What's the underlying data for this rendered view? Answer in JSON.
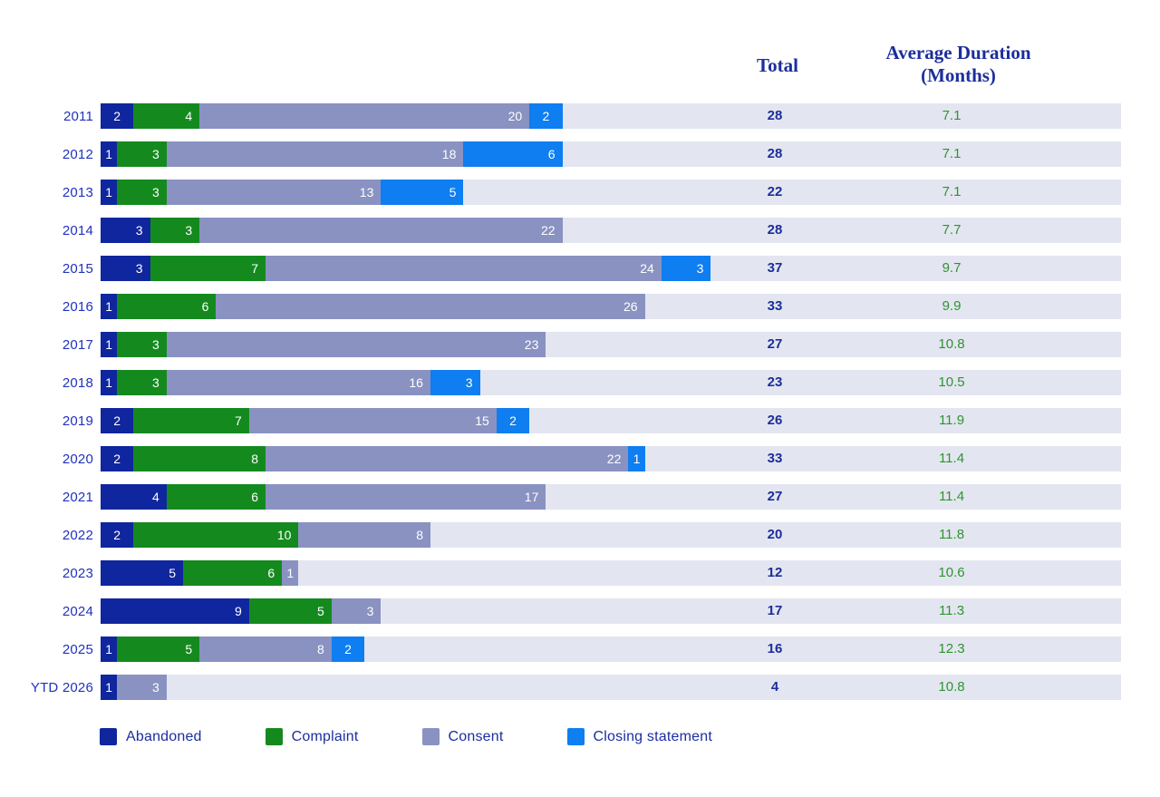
{
  "chart_data": {
    "type": "bar",
    "orientation": "horizontal",
    "stacked": true,
    "grid": false,
    "legend_position": "bottom",
    "categories": [
      "2011",
      "2012",
      "2013",
      "2014",
      "2015",
      "2016",
      "2017",
      "2018",
      "2019",
      "2020",
      "2021",
      "2022",
      "2023",
      "2024",
      "2025",
      "YTD 2026"
    ],
    "series": [
      {
        "name": "Abandoned",
        "color": "#10269E",
        "values": [
          2,
          1,
          1,
          3,
          3,
          1,
          1,
          1,
          2,
          2,
          4,
          2,
          5,
          9,
          1,
          1
        ]
      },
      {
        "name": "Complaint",
        "color": "#148A1E",
        "values": [
          4,
          3,
          3,
          3,
          7,
          6,
          3,
          3,
          7,
          8,
          6,
          10,
          6,
          5,
          5,
          0
        ]
      },
      {
        "name": "Consent",
        "color": "#8A92C2",
        "values": [
          20,
          18,
          13,
          22,
          24,
          26,
          23,
          16,
          15,
          22,
          17,
          8,
          1,
          3,
          8,
          3
        ]
      },
      {
        "name": "Closing statement",
        "color": "#0E7EF1",
        "values": [
          2,
          6,
          5,
          0,
          3,
          0,
          0,
          3,
          2,
          1,
          0,
          0,
          0,
          0,
          2,
          0
        ]
      }
    ],
    "totals": [
      28,
      28,
      22,
      28,
      37,
      33,
      27,
      23,
      26,
      33,
      27,
      20,
      12,
      17,
      16,
      4
    ],
    "avg_duration_months": [
      7.1,
      7.1,
      7.1,
      7.7,
      9.7,
      9.9,
      10.8,
      10.5,
      11.9,
      11.4,
      11.4,
      11.8,
      10.6,
      11.3,
      12.3,
      10.8
    ],
    "columns": {
      "total_label": "Total",
      "avg_label_line1": "Average Duration",
      "avg_label_line2": "(Months)"
    }
  },
  "legend": [
    {
      "label": "Abandoned",
      "color": "#10269E"
    },
    {
      "label": "Complaint",
      "color": "#148A1E"
    },
    {
      "label": "Consent",
      "color": "#8A92C2"
    },
    {
      "label": "Closing statement",
      "color": "#0E7EF1"
    }
  ],
  "colors": {
    "row_track": "#E3E6F0",
    "year_label_text": "#2032BE",
    "header_text": "#1B2E9C",
    "total_text": "#1B2E9C",
    "duration_text": "#2E9430",
    "segment_label_text": "#FFFFFF",
    "background": "#FFFFFF"
  }
}
